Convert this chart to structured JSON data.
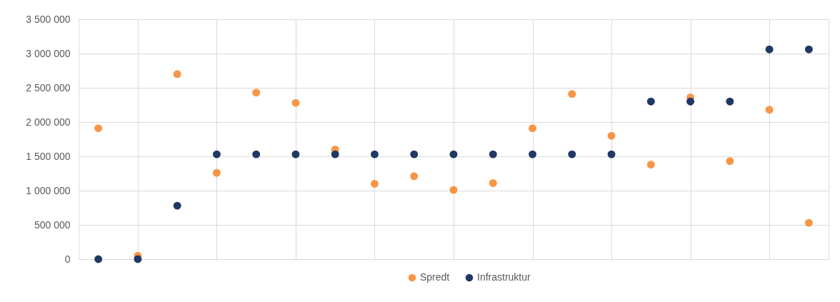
{
  "chart_data": {
    "type": "scatter",
    "categories": [
      null,
      null,
      null,
      null,
      null,
      null,
      null,
      null,
      null,
      null,
      null,
      null,
      null,
      null,
      null,
      null,
      null,
      null,
      null
    ],
    "ylim": [
      0,
      3500000
    ],
    "yticks": [
      {
        "value": 0,
        "label": "0"
      },
      {
        "value": 500000,
        "label": "500 000"
      },
      {
        "value": 1000000,
        "label": "1 000 000"
      },
      {
        "value": 1500000,
        "label": "1 500 000"
      },
      {
        "value": 2000000,
        "label": "2 000 000"
      },
      {
        "value": 2500000,
        "label": "2 500 000"
      },
      {
        "value": 3000000,
        "label": "3 000 000"
      },
      {
        "value": 3500000,
        "label": "3 500 000"
      }
    ],
    "tick_labels": "y",
    "series": [
      {
        "name": "Spredt",
        "color": "#f79646",
        "values": [
          1910000,
          50000,
          2700000,
          1260000,
          2430000,
          2280000,
          1600000,
          1100000,
          1210000,
          1010000,
          1110000,
          1910000,
          2410000,
          1800000,
          1380000,
          2360000,
          1430000,
          2180000,
          530000
        ]
      },
      {
        "name": "Infrastruktur",
        "color": "#1f3864",
        "values": [
          0,
          0,
          780000,
          1530000,
          1530000,
          1530000,
          1530000,
          1530000,
          1530000,
          1530000,
          1530000,
          1530000,
          1530000,
          1530000,
          2300000,
          2300000,
          2300000,
          3060000,
          3060000
        ]
      }
    ],
    "grid": true,
    "legend": "bottom",
    "marker": "circle"
  }
}
